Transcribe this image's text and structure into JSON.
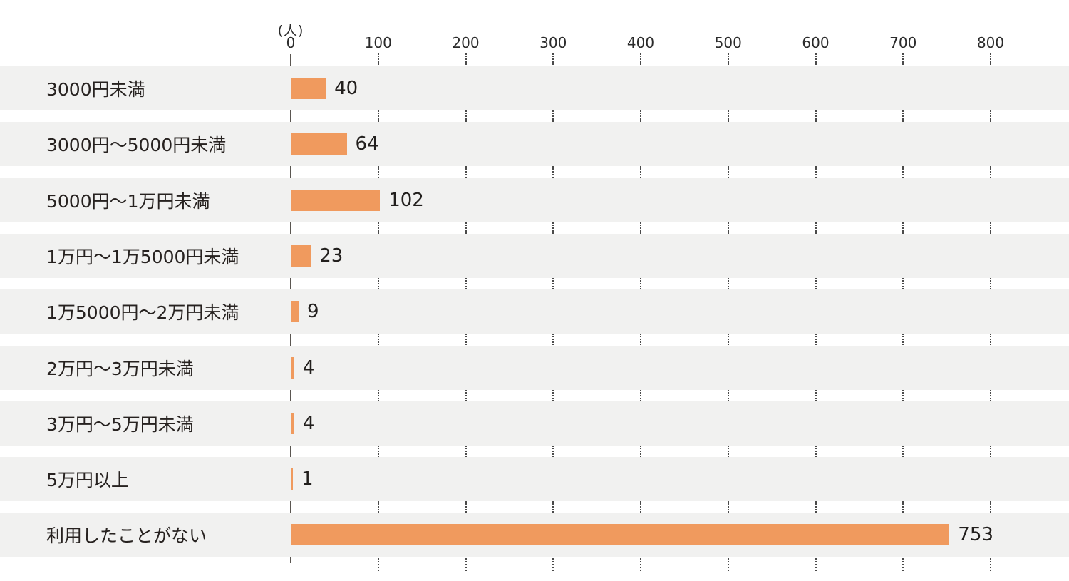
{
  "chart_data": {
    "type": "bar",
    "orientation": "horizontal",
    "title": "",
    "unit_label": "(人)",
    "categories": [
      "3000円未満",
      "3000円〜5000円未満",
      "5000円〜1万円未満",
      "1万円〜1万5000円未満",
      "1万5000円〜2万円未満",
      "2万円〜3万円未満",
      "3万円〜5万円未満",
      "5万円以上",
      "利用したことがない"
    ],
    "values": [
      40,
      64,
      102,
      23,
      9,
      4,
      4,
      1,
      753
    ],
    "xlim": [
      0,
      800
    ],
    "xticks": [
      0,
      100,
      200,
      300,
      400,
      500,
      600,
      700,
      800
    ],
    "grid": "dotted-vertical-lines-in-row-gaps",
    "legend": "none",
    "colors": {
      "bar": "#f09a5e",
      "row_band": "#f1f1f0",
      "text": "#272220",
      "axis_line": "#5a5651",
      "grid_dots": "#4a4a4a",
      "background": "#ffffff"
    }
  }
}
